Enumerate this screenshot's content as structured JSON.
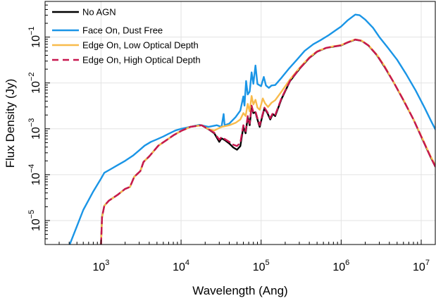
{
  "chart_data": {
    "type": "line",
    "xlabel": "Wavelength (Ang)",
    "ylabel": "Flux Density (Jy)",
    "x_scale": "log",
    "y_scale": "log",
    "xlim": [
      200,
      15000000
    ],
    "ylim": [
      3e-06,
      0.6
    ],
    "grid": true,
    "legend_position": "top-left",
    "x_ticks": [
      {
        "value": 1000,
        "base": "10",
        "exp": "3"
      },
      {
        "value": 10000,
        "base": "10",
        "exp": "4"
      },
      {
        "value": 100000,
        "base": "10",
        "exp": "5"
      },
      {
        "value": 1000000,
        "base": "10",
        "exp": "6"
      },
      {
        "value": 10000000,
        "base": "10",
        "exp": "7"
      }
    ],
    "y_ticks": [
      {
        "value": 1e-05,
        "base": "10",
        "exp": "−5"
      },
      {
        "value": 0.0001,
        "base": "10",
        "exp": "−4"
      },
      {
        "value": 0.001,
        "base": "10",
        "exp": "−3"
      },
      {
        "value": 0.01,
        "base": "10",
        "exp": "−2"
      },
      {
        "value": 0.1,
        "base": "10",
        "exp": "−1"
      }
    ],
    "series": [
      {
        "name": "No AGN",
        "color": "#000000",
        "dash": "solid",
        "points": [
          [
            1000,
            3e-06
          ],
          [
            1030,
            1.2e-05
          ],
          [
            1100,
            2.1e-05
          ],
          [
            1250,
            2.7e-05
          ],
          [
            1600,
            3.6e-05
          ],
          [
            2000,
            4.9e-05
          ],
          [
            2300,
            5.4e-05
          ],
          [
            2600,
            9e-05
          ],
          [
            3100,
            0.00012
          ],
          [
            3400,
            0.00019
          ],
          [
            4000,
            0.00025
          ],
          [
            5200,
            0.00043
          ],
          [
            6500,
            0.00056
          ],
          [
            8000,
            0.00072
          ],
          [
            10000,
            0.0009
          ],
          [
            13000,
            0.0011
          ],
          [
            18000,
            0.0012
          ],
          [
            22000,
            0.00098
          ],
          [
            26000,
            0.0008
          ],
          [
            30000,
            0.00052
          ],
          [
            32000,
            0.00062
          ],
          [
            35000,
            0.00057
          ],
          [
            40000,
            0.00048
          ],
          [
            45000,
            0.00039
          ],
          [
            50000,
            0.00035
          ],
          [
            55000,
            0.00042
          ],
          [
            60000,
            0.0011
          ],
          [
            64000,
            0.0008
          ],
          [
            68000,
            0.0018
          ],
          [
            72000,
            0.0012
          ],
          [
            76000,
            0.0031
          ],
          [
            80000,
            0.0022
          ],
          [
            85000,
            0.0023
          ],
          [
            90000,
            0.0016
          ],
          [
            96000,
            0.0011
          ],
          [
            102000,
            0.0017
          ],
          [
            110000,
            0.0028
          ],
          [
            120000,
            0.0022
          ],
          [
            130000,
            0.0016
          ],
          [
            140000,
            0.0021
          ],
          [
            150000,
            0.0019
          ],
          [
            180000,
            0.0045
          ],
          [
            230000,
            0.011
          ],
          [
            300000,
            0.02
          ],
          [
            400000,
            0.035
          ],
          [
            500000,
            0.048
          ],
          [
            650000,
            0.058
          ],
          [
            800000,
            0.062
          ],
          [
            1000000,
            0.066
          ],
          [
            1200000,
            0.076
          ],
          [
            1500000,
            0.088
          ],
          [
            1800000,
            0.083
          ],
          [
            2200000,
            0.065
          ],
          [
            2800000,
            0.04
          ],
          [
            3500000,
            0.022
          ],
          [
            4500000,
            0.0105
          ],
          [
            6000000,
            0.0042
          ],
          [
            8000000,
            0.0016
          ],
          [
            10000000,
            0.00068
          ],
          [
            13000000,
            0.00025
          ],
          [
            15000000,
            0.00015
          ]
        ]
      },
      {
        "name": "Face On, Dust Free",
        "color": "#1a95e6",
        "dash": "solid",
        "points": [
          [
            400,
            2.8e-06
          ],
          [
            500,
            7.5e-06
          ],
          [
            600,
            1.7e-05
          ],
          [
            800,
            4.3e-05
          ],
          [
            1000,
            8.2e-05
          ],
          [
            1100,
            0.00011
          ],
          [
            1300,
            0.00013
          ],
          [
            1600,
            0.00016
          ],
          [
            2000,
            0.0002
          ],
          [
            2500,
            0.00026
          ],
          [
            3000,
            0.00034
          ],
          [
            3500,
            0.00043
          ],
          [
            4200,
            0.00052
          ],
          [
            5000,
            0.00059
          ],
          [
            6000,
            0.00068
          ],
          [
            7000,
            0.00078
          ],
          [
            8500,
            0.00092
          ],
          [
            10000,
            0.001
          ],
          [
            13000,
            0.0011
          ],
          [
            17000,
            0.00122
          ],
          [
            22000,
            0.0011
          ],
          [
            28000,
            0.0012
          ],
          [
            32000,
            0.0011
          ],
          [
            34000,
            0.0021
          ],
          [
            35000,
            0.0012
          ],
          [
            40000,
            0.0013
          ],
          [
            48000,
            0.0018
          ],
          [
            55000,
            0.0025
          ],
          [
            60000,
            0.0051
          ],
          [
            62000,
            0.0032
          ],
          [
            65000,
            0.011
          ],
          [
            68000,
            0.0056
          ],
          [
            72000,
            0.0065
          ],
          [
            76000,
            0.017
          ],
          [
            80000,
            0.0096
          ],
          [
            85000,
            0.024
          ],
          [
            90000,
            0.0095
          ],
          [
            100000,
            0.0085
          ],
          [
            108000,
            0.0135
          ],
          [
            115000,
            0.0088
          ],
          [
            125000,
            0.0078
          ],
          [
            135000,
            0.0088
          ],
          [
            150000,
            0.009
          ],
          [
            180000,
            0.013
          ],
          [
            220000,
            0.02
          ],
          [
            280000,
            0.032
          ],
          [
            350000,
            0.05
          ],
          [
            450000,
            0.07
          ],
          [
            550000,
            0.085
          ],
          [
            700000,
            0.11
          ],
          [
            850000,
            0.14
          ],
          [
            1000000,
            0.17
          ],
          [
            1200000,
            0.23
          ],
          [
            1500000,
            0.31
          ],
          [
            1700000,
            0.3
          ],
          [
            2000000,
            0.24
          ],
          [
            2500000,
            0.16
          ],
          [
            3000000,
            0.1
          ],
          [
            3800000,
            0.06
          ],
          [
            5000000,
            0.032
          ],
          [
            6500000,
            0.0155
          ],
          [
            8500000,
            0.0069
          ],
          [
            11000000,
            0.0029
          ],
          [
            13500000,
            0.0014
          ],
          [
            15000000,
            0.00098
          ]
        ]
      },
      {
        "name": "Edge On, Low Optical Depth",
        "color": "#f8bb4c",
        "dash": "solid",
        "points": [
          [
            1000,
            3e-06
          ],
          [
            1030,
            1.2e-05
          ],
          [
            1100,
            2.1e-05
          ],
          [
            1250,
            2.7e-05
          ],
          [
            1600,
            3.6e-05
          ],
          [
            2000,
            4.9e-05
          ],
          [
            2300,
            5.4e-05
          ],
          [
            2600,
            9e-05
          ],
          [
            3100,
            0.00012
          ],
          [
            3400,
            0.00019
          ],
          [
            4000,
            0.00025
          ],
          [
            5200,
            0.00043
          ],
          [
            6500,
            0.00056
          ],
          [
            8000,
            0.00072
          ],
          [
            10000,
            0.0009
          ],
          [
            13000,
            0.0011
          ],
          [
            18000,
            0.0012
          ],
          [
            22000,
            0.00099
          ],
          [
            26000,
            0.00092
          ],
          [
            32000,
            0.0011
          ],
          [
            40000,
            0.0012
          ],
          [
            48000,
            0.00135
          ],
          [
            55000,
            0.0016
          ],
          [
            60000,
            0.0022
          ],
          [
            64000,
            0.0019
          ],
          [
            68000,
            0.0035
          ],
          [
            72000,
            0.0024
          ],
          [
            76000,
            0.0052
          ],
          [
            80000,
            0.0034
          ],
          [
            85000,
            0.0043
          ],
          [
            90000,
            0.0029
          ],
          [
            96000,
            0.0026
          ],
          [
            105000,
            0.0046
          ],
          [
            112000,
            0.0036
          ],
          [
            122000,
            0.003
          ],
          [
            135000,
            0.0037
          ],
          [
            150000,
            0.0042
          ],
          [
            180000,
            0.0065
          ],
          [
            230000,
            0.012
          ],
          [
            300000,
            0.021
          ],
          [
            400000,
            0.036
          ],
          [
            500000,
            0.049
          ],
          [
            650000,
            0.058
          ],
          [
            800000,
            0.063
          ],
          [
            1000000,
            0.067
          ],
          [
            1200000,
            0.077
          ],
          [
            1500000,
            0.089
          ],
          [
            1800000,
            0.084
          ],
          [
            2200000,
            0.066
          ],
          [
            2800000,
            0.041
          ],
          [
            3500000,
            0.023
          ],
          [
            4500000,
            0.0106
          ],
          [
            6000000,
            0.0043
          ],
          [
            8000000,
            0.0016
          ],
          [
            10000000,
            0.0007
          ],
          [
            13000000,
            0.00026
          ],
          [
            15000000,
            0.00016
          ]
        ]
      },
      {
        "name": "Edge On, High Optical Depth",
        "color": "#c8174f",
        "dash": "dashed",
        "points": [
          [
            1000,
            3e-06
          ],
          [
            1030,
            1.2e-05
          ],
          [
            1100,
            2.1e-05
          ],
          [
            1250,
            2.7e-05
          ],
          [
            1600,
            3.6e-05
          ],
          [
            2000,
            4.9e-05
          ],
          [
            2300,
            5.4e-05
          ],
          [
            2600,
            9e-05
          ],
          [
            3100,
            0.00012
          ],
          [
            3400,
            0.00019
          ],
          [
            4000,
            0.00025
          ],
          [
            5200,
            0.00043
          ],
          [
            6500,
            0.00056
          ],
          [
            8000,
            0.00072
          ],
          [
            10000,
            0.0009
          ],
          [
            13000,
            0.0011
          ],
          [
            18000,
            0.0012
          ],
          [
            22000,
            0.00098
          ],
          [
            26000,
            0.00082
          ],
          [
            30000,
            0.00058
          ],
          [
            32000,
            0.00066
          ],
          [
            35000,
            0.0006
          ],
          [
            40000,
            0.00052
          ],
          [
            45000,
            0.00045
          ],
          [
            50000,
            0.00042
          ],
          [
            55000,
            0.0005
          ],
          [
            60000,
            0.0012
          ],
          [
            64000,
            0.00088
          ],
          [
            68000,
            0.0019
          ],
          [
            72000,
            0.0013
          ],
          [
            76000,
            0.0032
          ],
          [
            80000,
            0.0023
          ],
          [
            85000,
            0.0024
          ],
          [
            90000,
            0.0017
          ],
          [
            96000,
            0.0012
          ],
          [
            102000,
            0.0018
          ],
          [
            110000,
            0.0029
          ],
          [
            120000,
            0.0023
          ],
          [
            130000,
            0.0017
          ],
          [
            140000,
            0.0022
          ],
          [
            150000,
            0.002
          ],
          [
            180000,
            0.0047
          ],
          [
            230000,
            0.0112
          ],
          [
            300000,
            0.0202
          ],
          [
            400000,
            0.0352
          ],
          [
            500000,
            0.0482
          ],
          [
            650000,
            0.0582
          ],
          [
            800000,
            0.0622
          ],
          [
            1000000,
            0.0662
          ],
          [
            1200000,
            0.0762
          ],
          [
            1500000,
            0.0882
          ],
          [
            1800000,
            0.0832
          ],
          [
            2200000,
            0.0652
          ],
          [
            2800000,
            0.0402
          ],
          [
            3500000,
            0.0222
          ],
          [
            4500000,
            0.0105
          ],
          [
            6000000,
            0.0042
          ],
          [
            8000000,
            0.0016
          ],
          [
            10000000,
            0.00068
          ],
          [
            13000000,
            0.00025
          ],
          [
            15000000,
            0.00015
          ]
        ]
      }
    ]
  }
}
